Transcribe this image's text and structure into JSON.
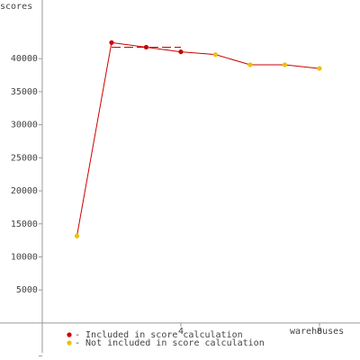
{
  "chart_data": {
    "type": "line",
    "ylabel": "scores",
    "xlabel": "warehouses",
    "x": [
      1,
      2,
      3,
      4,
      5,
      6,
      7,
      8
    ],
    "values": [
      13165,
      42437,
      41737,
      41036,
      40616,
      39076,
      39076,
      38516
    ],
    "included": [
      false,
      true,
      true,
      true,
      false,
      false,
      false,
      false
    ],
    "line_color": "#cc0000",
    "score_line": {
      "value": 41737,
      "x": [
        2,
        4
      ],
      "color": "#cc0000"
    },
    "legend": [
      {
        "name": "- Included in score calculation",
        "color": "#cc0000"
      },
      {
        "name": "- Not included in score calculation",
        "color": "#f0c000"
      }
    ],
    "xlim": [
      -1.22,
      9.17
    ],
    "xticks": [
      4,
      8
    ],
    "ylim": [
      -5600,
      48880
    ],
    "yticks": [
      5000,
      10000,
      15000,
      20000,
      25000,
      30000,
      35000,
      40000
    ],
    "yticks_minor": [
      -5000
    ],
    "grid": false
  }
}
